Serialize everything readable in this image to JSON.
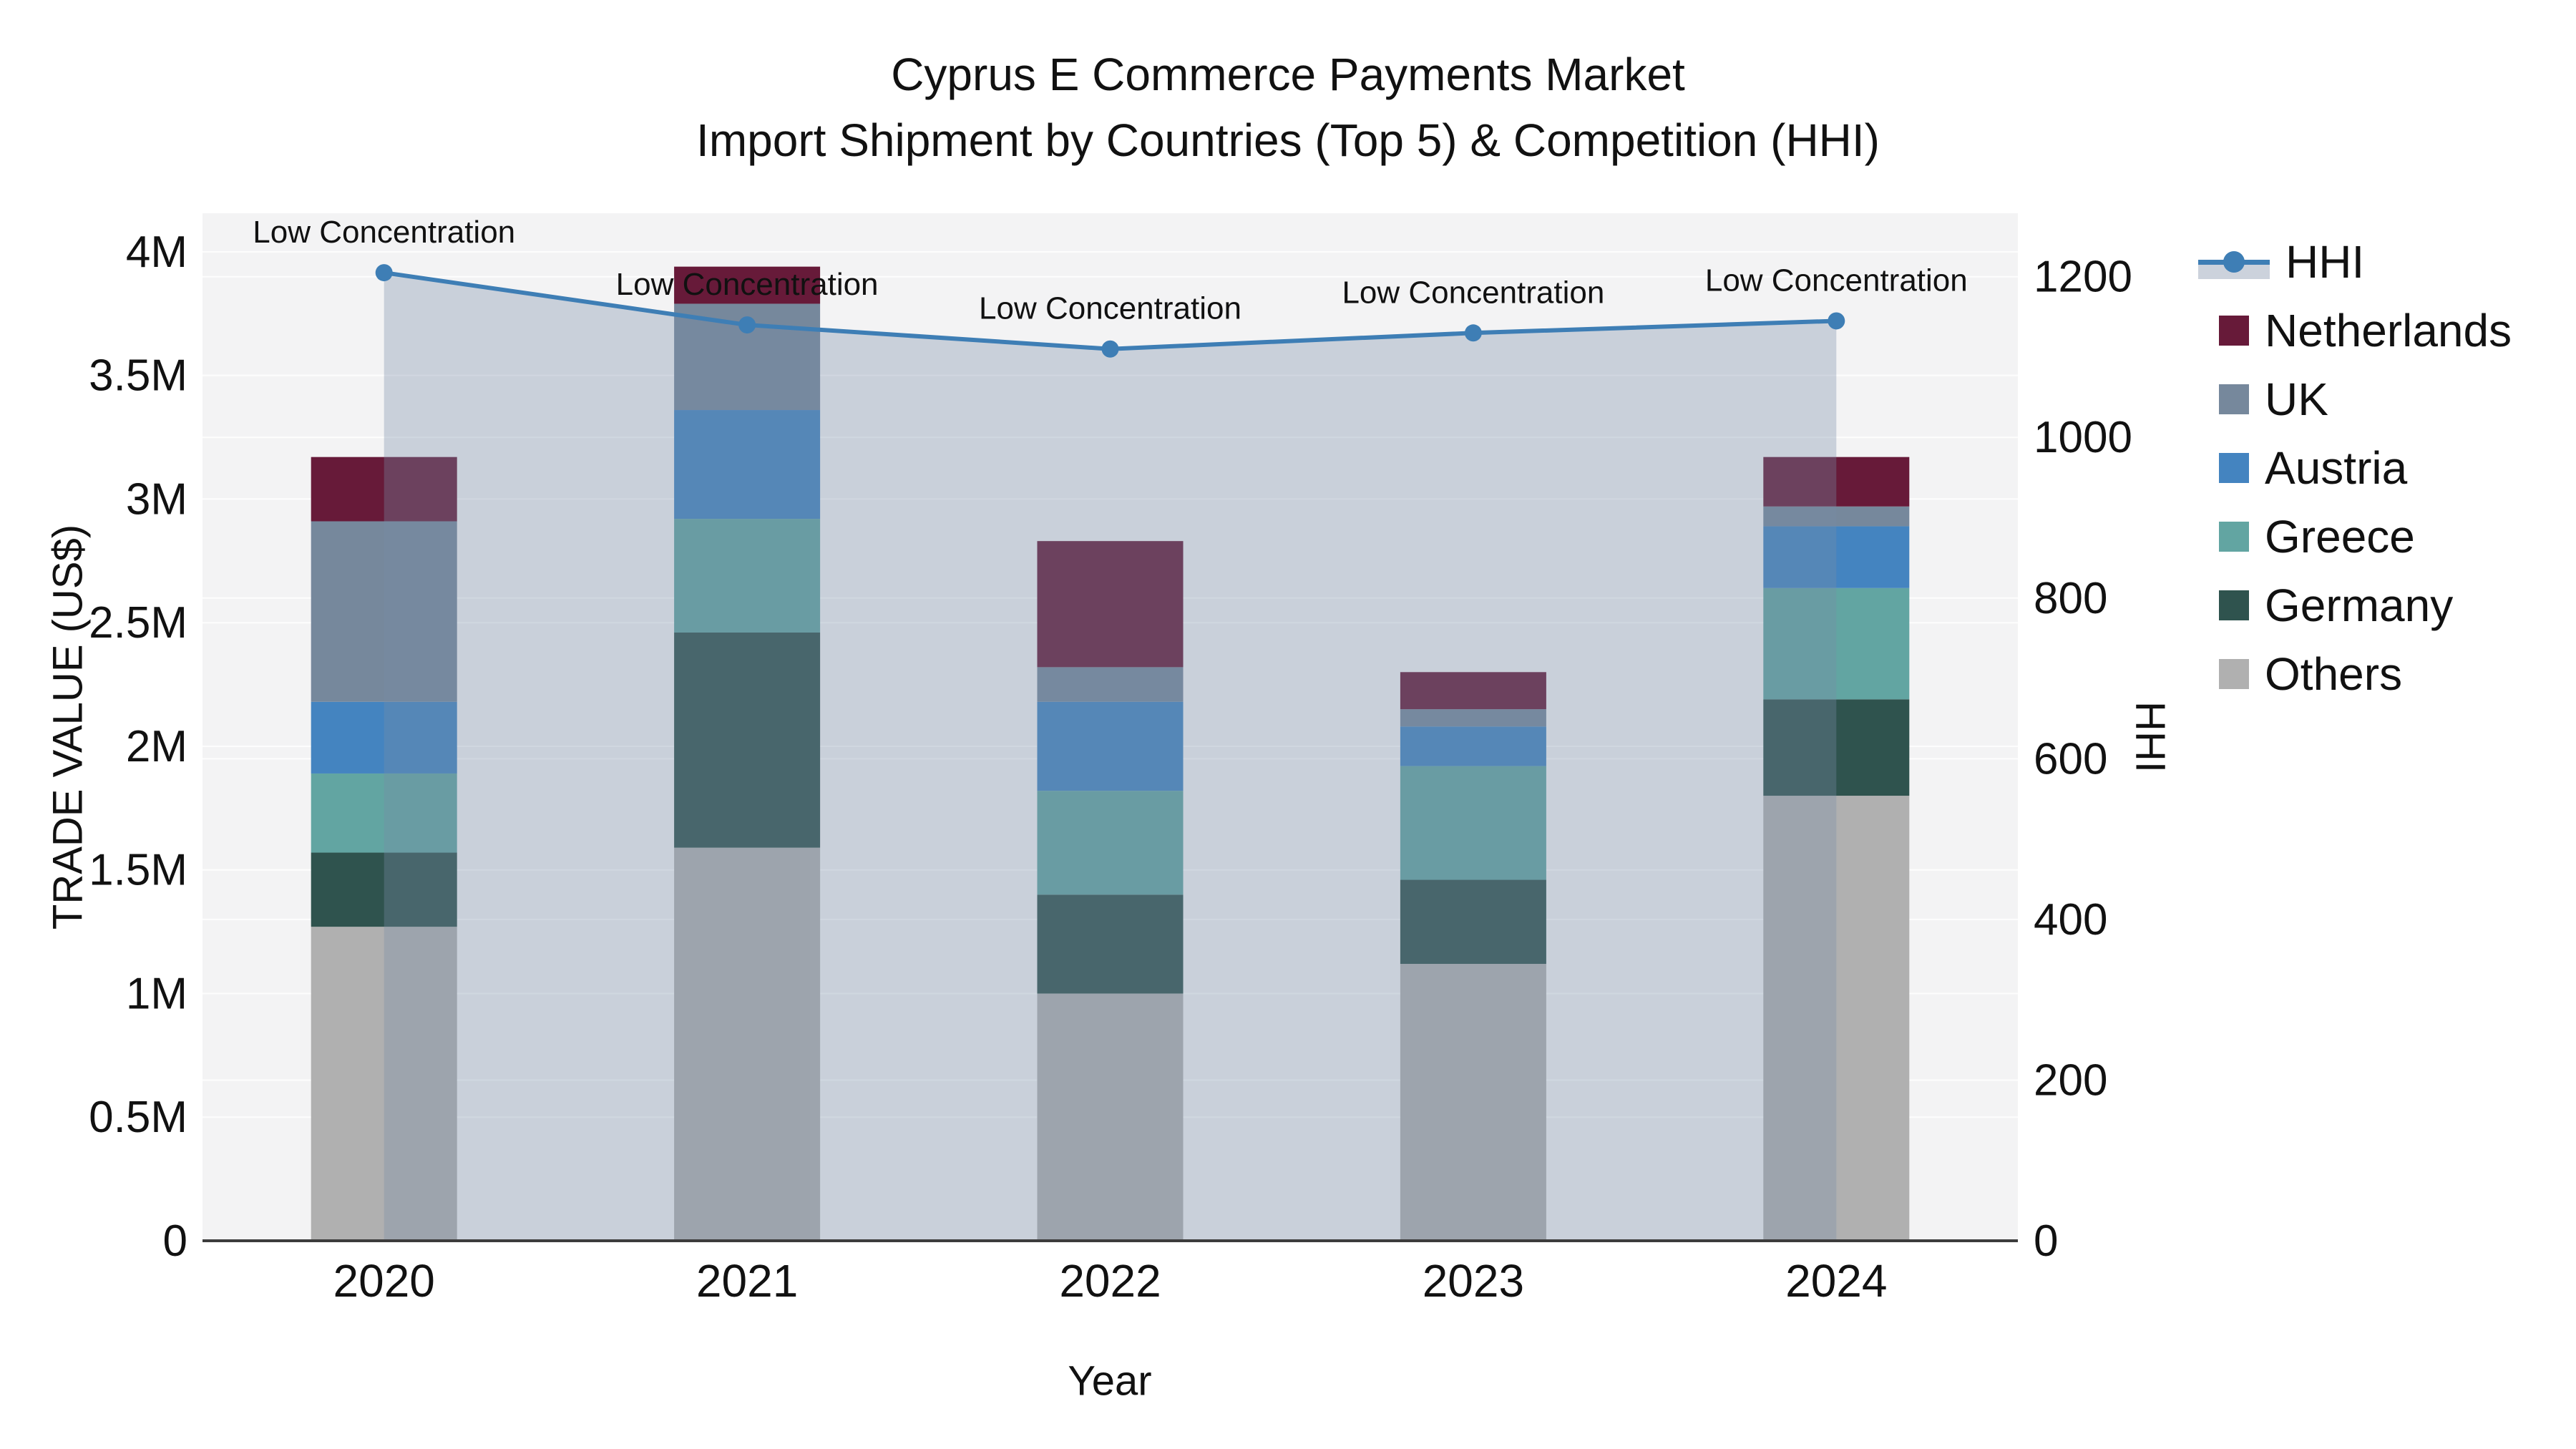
{
  "title": {
    "line1": "Cyprus E Commerce Payments Market",
    "line2": "Import Shipment by Countries (Top 5) & Competition (HHI)"
  },
  "axes": {
    "x": {
      "title": "Year"
    },
    "y_left": {
      "title": "TRADE VALUE (US$)",
      "tick_labels": [
        "0",
        "0.5M",
        "1M",
        "1.5M",
        "2M",
        "2.5M",
        "3M",
        "3.5M",
        "4M"
      ],
      "tick_values_musd": [
        0,
        0.5,
        1,
        1.5,
        2,
        2.5,
        3,
        3.5,
        4
      ]
    },
    "y_right": {
      "title": "HHI",
      "tick_labels": [
        "0",
        "200",
        "400",
        "600",
        "800",
        "1000",
        "1200"
      ],
      "tick_values": [
        0,
        200,
        400,
        600,
        800,
        1000,
        1200
      ]
    }
  },
  "chart_data": {
    "type": "bar",
    "subtype": "stacked-bars-with-line-area",
    "categories": [
      "2020",
      "2021",
      "2022",
      "2023",
      "2024"
    ],
    "unit": "US$ millions (left axis), HHI index (right axis)",
    "series": [
      {
        "name": "Others",
        "color": "#b0b0b0",
        "values_musd": [
          1.27,
          1.59,
          1.0,
          1.12,
          1.8
        ]
      },
      {
        "name": "Germany",
        "color": "#2f534e",
        "values_musd": [
          0.3,
          0.87,
          0.4,
          0.34,
          0.39
        ]
      },
      {
        "name": "Greece",
        "color": "#62a5a2",
        "values_musd": [
          0.32,
          0.46,
          0.42,
          0.46,
          0.45
        ]
      },
      {
        "name": "Austria",
        "color": "#4484c0",
        "values_musd": [
          0.29,
          0.44,
          0.36,
          0.16,
          0.25
        ]
      },
      {
        "name": "UK",
        "color": "#76889c",
        "values_musd": [
          0.73,
          0.43,
          0.14,
          0.07,
          0.08
        ]
      },
      {
        "name": "Netherlands",
        "color": "#671a39",
        "values_musd": [
          0.26,
          0.15,
          0.51,
          0.15,
          0.2
        ]
      }
    ],
    "totals_musd": [
      3.17,
      3.94,
      2.83,
      2.3,
      3.17
    ],
    "line_series": {
      "name": "HHI",
      "color": "#3e7eb5",
      "area_fill_color": "rgba(120,140,168,0.34)",
      "values": [
        1205,
        1140,
        1110,
        1130,
        1145
      ]
    },
    "annotations": [
      "Low Concentration",
      "Low Concentration",
      "Low Concentration",
      "Low Concentration",
      "Low Concentration"
    ],
    "ylim_musd": [
      0,
      4.156
    ],
    "y2lim": [
      0,
      1279
    ],
    "grid": true,
    "plot_bg": "#f3f3f4",
    "gridline_color": "#ffffff",
    "axisline_color": "#3c3c3c",
    "legend_position": "right"
  },
  "legend": {
    "items": [
      {
        "label": "HHI",
        "kind": "line"
      },
      {
        "label": "Netherlands",
        "color": "#671a39",
        "kind": "swatch"
      },
      {
        "label": "UK",
        "color": "#76889c",
        "kind": "swatch"
      },
      {
        "label": "Austria",
        "color": "#4484c0",
        "kind": "swatch"
      },
      {
        "label": "Greece",
        "color": "#62a5a2",
        "kind": "swatch"
      },
      {
        "label": "Germany",
        "color": "#2f534e",
        "kind": "swatch"
      },
      {
        "label": "Others",
        "color": "#b0b0b0",
        "kind": "swatch"
      }
    ]
  }
}
